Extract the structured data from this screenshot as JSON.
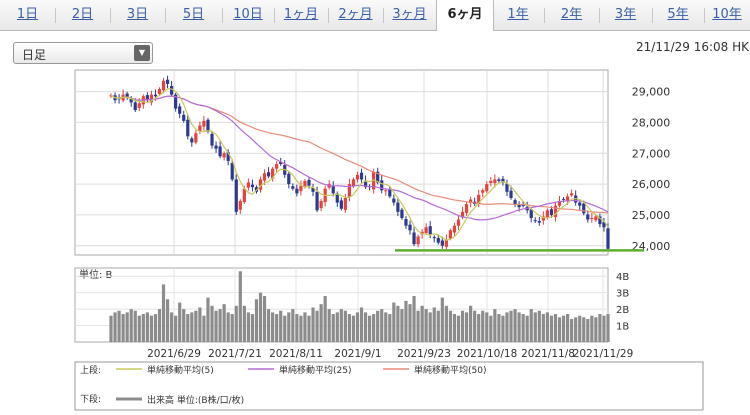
{
  "tabs": [
    {
      "label": "1日",
      "selected": false
    },
    {
      "label": "2日",
      "selected": false
    },
    {
      "label": "3日",
      "selected": false
    },
    {
      "label": "5日",
      "selected": false
    },
    {
      "label": "10日",
      "selected": false
    },
    {
      "label": "1ヶ月",
      "selected": false
    },
    {
      "label": "2ヶ月",
      "selected": false
    },
    {
      "label": "3ヶ月",
      "selected": false
    },
    {
      "label": "6ヶ月",
      "selected": true
    },
    {
      "label": "1年",
      "selected": false
    },
    {
      "label": "2年",
      "selected": false
    },
    {
      "label": "3年",
      "selected": false
    },
    {
      "label": "5年",
      "selected": false
    },
    {
      "label": "10年",
      "selected": false
    }
  ],
  "period_select": {
    "value": "日足"
  },
  "timestamp": "21/11/29 16:08 HK",
  "colors": {
    "up": "#e8403c",
    "down": "#2b3a8f",
    "ma5": "#c8c85a",
    "ma25": "#b46ad8",
    "ma50": "#e88a78",
    "volume": "#8c8c8c",
    "support": "#5fae2e"
  },
  "chart_data": [
    {
      "type": "candlestick",
      "yticks": [
        24000,
        25000,
        26000,
        27000,
        28000,
        29000
      ],
      "ytick_labels": [
        "24,000",
        "25,000",
        "26,000",
        "27,000",
        "28,000",
        "29,000"
      ],
      "ylim": [
        23700,
        29700
      ],
      "xticks": [
        "2021/6/29",
        "2021/7/21",
        "2021/8/11",
        "2021/9/1",
        "2021/9/23",
        "2021/10/18",
        "2021/11/8",
        "2021/11/29"
      ],
      "close": [
        28880,
        28720,
        28750,
        28900,
        28830,
        28650,
        28400,
        28620,
        28850,
        28720,
        28900,
        28850,
        29080,
        29350,
        29250,
        28900,
        28450,
        28280,
        28050,
        27550,
        27350,
        27650,
        27900,
        28050,
        27700,
        27250,
        27150,
        26900,
        27000,
        26750,
        26150,
        25100,
        25450,
        25850,
        26050,
        25900,
        25750,
        26150,
        26350,
        26250,
        26500,
        26650,
        26650,
        26300,
        26000,
        25850,
        25700,
        25950,
        26100,
        25950,
        25750,
        25150,
        25450,
        25850,
        26000,
        25700,
        25400,
        25200,
        25550,
        26000,
        26150,
        26300,
        26150,
        25900,
        25900,
        26400,
        26050,
        25800,
        25800,
        25600,
        25400,
        25100,
        24900,
        24650,
        24500,
        24050,
        24300,
        24450,
        24600,
        24350,
        24250,
        24100,
        24000,
        24200,
        24500,
        24650,
        24850,
        25100,
        25350,
        25500,
        25350,
        25650,
        25800,
        26000,
        26100,
        26150,
        26100,
        26050,
        25750,
        25550,
        25350,
        25250,
        25300,
        25150,
        24900,
        24800,
        24750,
        24950,
        25150,
        25000,
        25300,
        25450,
        25500,
        25600,
        25700,
        25400,
        25300,
        25050,
        24850,
        24900,
        24950,
        24700,
        24600,
        23900
      ],
      "ma_series": [
        {
          "name": "単純移動平均(5)"
        },
        {
          "name": "単純移動平均(25)"
        },
        {
          "name": "単純移動平均(50)"
        }
      ],
      "support_line": 23850
    },
    {
      "type": "bar",
      "title": "単位: B",
      "yticks": [
        1,
        2,
        3,
        4
      ],
      "ytick_labels": [
        "1B",
        "2B",
        "3B",
        "4B"
      ],
      "ylim": [
        0,
        4.5
      ],
      "values": [
        1.6,
        1.8,
        1.9,
        1.7,
        1.8,
        2.0,
        1.9,
        1.6,
        1.7,
        1.8,
        1.6,
        1.7,
        2.0,
        3.5,
        2.6,
        1.8,
        1.6,
        2.4,
        2.0,
        1.7,
        1.8,
        1.9,
        2.1,
        1.6,
        2.7,
        2.2,
        1.9,
        2.0,
        2.3,
        1.8,
        1.7,
        2.2,
        4.3,
        2.2,
        1.8,
        1.7,
        2.6,
        3.0,
        2.8,
        2.0,
        1.8,
        1.7,
        1.9,
        1.6,
        1.8,
        2.0,
        1.7,
        1.6,
        1.8,
        1.6,
        2.1,
        1.9,
        2.3,
        2.8,
        2.0,
        1.7,
        1.8,
        2.0,
        1.9,
        1.7,
        1.6,
        1.8,
        2.1,
        1.8,
        1.6,
        1.7,
        1.9,
        2.0,
        1.8,
        1.7,
        2.4,
        2.2,
        2.0,
        2.5,
        2.3,
        2.8,
        1.9,
        2.2,
        2.0,
        1.8,
        2.1,
        1.9,
        2.7,
        2.2,
        1.9,
        1.7,
        1.6,
        1.9,
        1.8,
        2.2,
        1.9,
        1.7,
        1.9,
        1.8,
        1.6,
        2.0,
        1.7,
        1.6,
        1.8,
        1.9,
        2.0,
        1.8,
        1.7,
        1.6,
        2.0,
        1.8,
        1.9,
        1.7,
        1.8,
        1.6,
        1.7,
        1.5,
        1.6,
        1.7,
        1.4,
        1.5,
        1.6,
        1.5,
        1.4,
        1.6,
        1.5,
        1.7,
        1.6,
        1.7
      ]
    }
  ],
  "legend": {
    "upper_label": "上段:",
    "lower_label": "下段:",
    "items": [
      {
        "label": "単純移動平均(5)",
        "color": "#c8c85a"
      },
      {
        "label": "単純移動平均(25)",
        "color": "#b46ad8"
      },
      {
        "label": "単純移動平均(50)",
        "color": "#e88a78"
      }
    ],
    "volume_label": "出来高 単位:(B株/口/枚)"
  }
}
